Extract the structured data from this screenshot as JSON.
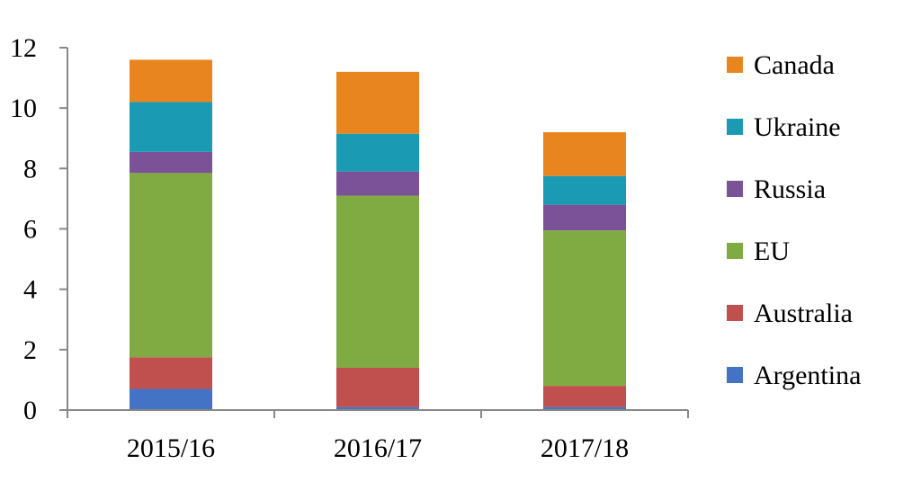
{
  "chart_data": {
    "type": "bar",
    "stacked": true,
    "categories": [
      "2015/16",
      "2016/17",
      "2017/18"
    ],
    "series": [
      {
        "name": "Argentina",
        "color": "#4472C4",
        "values": [
          0.7,
          0.1,
          0.1
        ]
      },
      {
        "name": "Australia",
        "color": "#C0504D",
        "values": [
          1.05,
          1.3,
          0.7
        ]
      },
      {
        "name": "EU",
        "color": "#7FAB42",
        "values": [
          6.1,
          5.7,
          5.15
        ]
      },
      {
        "name": "Russia",
        "color": "#7B5197",
        "values": [
          0.7,
          0.8,
          0.85
        ]
      },
      {
        "name": "Ukraine",
        "color": "#1A9BB3",
        "values": [
          1.65,
          1.25,
          0.95
        ]
      },
      {
        "name": "Canada",
        "color": "#E8851E",
        "values": [
          1.4,
          2.05,
          1.45
        ]
      }
    ],
    "yticks": [
      "0",
      "2",
      "4",
      "6",
      "8",
      "10",
      "12"
    ],
    "ylim": [
      0,
      12
    ],
    "legend_position": "right",
    "legend_order": [
      "Canada",
      "Ukraine",
      "Russia",
      "EU",
      "Australia",
      "Argentina"
    ],
    "grid": false
  }
}
